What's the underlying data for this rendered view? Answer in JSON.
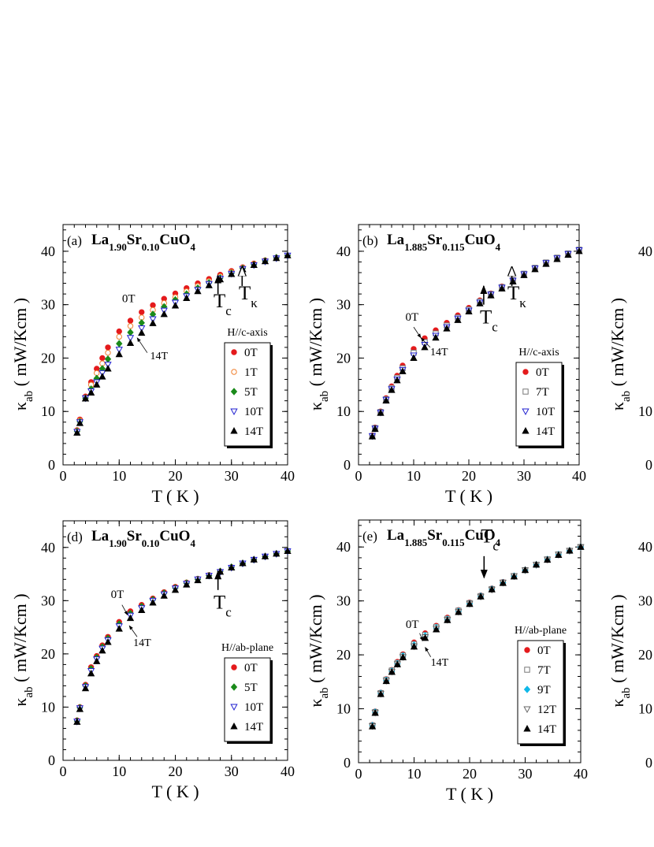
{
  "chart_data": [
    {
      "type": "scatter",
      "panel_label": "(a)",
      "title": "La1.90Sr0.10CuO4",
      "x_label": "T ( K )",
      "y_label": "κab ( mW/Kcm )",
      "xlim": [
        0,
        40
      ],
      "ylim": [
        0,
        45
      ],
      "xticks": [
        0,
        10,
        20,
        30,
        40
      ],
      "yticks": [
        0,
        10,
        20,
        30,
        40
      ],
      "legend_title": "H//c-axis",
      "legend": "lower right",
      "annotations": [
        "0T",
        "14T",
        "Tc",
        "Tκ"
      ],
      "x": [
        2.5,
        3,
        4,
        5,
        6,
        7,
        8,
        10,
        12,
        14,
        16,
        18,
        20,
        22,
        24,
        26,
        28,
        30,
        32,
        34,
        36,
        38,
        40
      ],
      "series": [
        {
          "name": "0T",
          "color": "#e41a1c",
          "marker": "circle",
          "values": [
            6.5,
            8.5,
            12.8,
            15.5,
            18,
            20,
            22,
            25,
            27,
            28.6,
            29.9,
            31.1,
            32.1,
            33.1,
            34,
            34.8,
            35.6,
            36.3,
            37,
            37.7,
            38.3,
            38.8,
            39.2
          ]
        },
        {
          "name": "1T",
          "color": "#f08030",
          "marker": "open-circle",
          "values": [
            6.4,
            8.3,
            12.6,
            15,
            17.2,
            19,
            21,
            24,
            26,
            27.6,
            29,
            30.3,
            31.4,
            32.5,
            33.5,
            34.4,
            35.3,
            36.1,
            36.9,
            37.6,
            38.3,
            38.8,
            39.2
          ]
        },
        {
          "name": "5T",
          "color": "#1a8a1a",
          "marker": "diamond",
          "values": [
            6.3,
            8.1,
            12.5,
            14.2,
            16.2,
            18,
            19.8,
            22.7,
            24.8,
            26.6,
            28.2,
            29.6,
            30.9,
            32,
            33.1,
            34.1,
            35,
            35.9,
            36.8,
            37.5,
            38.2,
            38.8,
            39.2
          ]
        },
        {
          "name": "10T",
          "color": "#2020d0",
          "marker": "open-triangle-down",
          "values": [
            6.2,
            8,
            12.5,
            13.8,
            15.5,
            17.2,
            18.8,
            21.6,
            23.8,
            25.6,
            27.3,
            28.9,
            30.4,
            31.6,
            32.8,
            33.9,
            34.9,
            35.8,
            36.7,
            37.4,
            38.1,
            38.7,
            39.2
          ]
        },
        {
          "name": "14T",
          "color": "#000000",
          "marker": "triangle-up",
          "values": [
            6,
            7.8,
            12.4,
            13.5,
            15,
            16.5,
            18,
            20.7,
            22.8,
            24.7,
            26.5,
            28.2,
            29.8,
            31.2,
            32.5,
            33.6,
            34.7,
            35.7,
            36.6,
            37.4,
            38.1,
            38.7,
            39.2
          ]
        }
      ]
    },
    {
      "type": "scatter",
      "panel_label": "(b)",
      "title": "La1.885Sr0.115CuO4",
      "x_label": "T ( K )",
      "y_label": "κab ( mW/Kcm )",
      "xlim": [
        0,
        40
      ],
      "ylim": [
        0,
        45
      ],
      "xticks": [
        0,
        10,
        20,
        30,
        40
      ],
      "yticks": [
        0,
        10,
        20,
        30,
        40
      ],
      "legend_title": "H//c-axis",
      "legend": "lower right",
      "annotations": [
        "0T",
        "14T",
        "Tc",
        "Tκ"
      ],
      "x": [
        2.5,
        3,
        4,
        5,
        6,
        7,
        8,
        10,
        12,
        14,
        16,
        18,
        20,
        22,
        24,
        26,
        28,
        30,
        32,
        34,
        36,
        38,
        40
      ],
      "series": [
        {
          "name": "0T",
          "color": "#e41a1c",
          "marker": "circle",
          "values": [
            5.5,
            7,
            10,
            12.5,
            14.7,
            16.7,
            18.6,
            21.7,
            23.7,
            25.2,
            26.6,
            28,
            29.4,
            30.8,
            32.1,
            33.4,
            34.6,
            35.7,
            36.8,
            37.8,
            38.7,
            39.5,
            40.2
          ]
        },
        {
          "name": "7T",
          "color": "#777777",
          "marker": "open-square",
          "values": [
            5.4,
            6.9,
            9.9,
            12.3,
            14.4,
            16.3,
            18.1,
            21,
            23,
            24.6,
            26.1,
            27.6,
            29.1,
            30.6,
            32,
            33.3,
            34.6,
            35.8,
            36.9,
            37.9,
            38.8,
            39.6,
            40.3
          ]
        },
        {
          "name": "10T",
          "color": "#2020d0",
          "marker": "open-triangle-down",
          "values": [
            5.4,
            6.8,
            9.8,
            12.2,
            14.2,
            16,
            17.8,
            20.5,
            22.5,
            24.2,
            25.8,
            27.4,
            28.9,
            30.4,
            31.9,
            33.2,
            34.5,
            35.7,
            36.8,
            37.8,
            38.7,
            39.5,
            40.2
          ]
        },
        {
          "name": "14T",
          "color": "#000000",
          "marker": "triangle-up",
          "values": [
            5.3,
            6.7,
            9.7,
            12,
            14,
            15.8,
            17.5,
            20,
            22,
            23.8,
            25.5,
            27.1,
            28.7,
            30.2,
            31.7,
            33,
            34.3,
            35.5,
            36.6,
            37.6,
            38.5,
            39.3,
            40
          ]
        }
      ]
    },
    {
      "type": "scatter",
      "panel_label": "(d)",
      "title": "La1.90Sr0.10CuO4",
      "x_label": "T ( K )",
      "y_label": "κab ( mW/Kcm )",
      "xlim": [
        0,
        40
      ],
      "ylim": [
        0,
        45
      ],
      "xticks": [
        0,
        10,
        20,
        30,
        40
      ],
      "yticks": [
        0,
        10,
        20,
        30,
        40
      ],
      "legend_title": "H//ab-plane",
      "legend": "lower right",
      "annotations": [
        "0T",
        "14T",
        "Tc"
      ],
      "x": [
        2.5,
        3,
        4,
        5,
        6,
        7,
        8,
        10,
        12,
        14,
        16,
        18,
        20,
        22,
        24,
        26,
        28,
        30,
        32,
        34,
        36,
        38,
        40
      ],
      "series": [
        {
          "name": "0T",
          "color": "#e41a1c",
          "marker": "circle",
          "values": [
            7.5,
            10,
            14.2,
            17.5,
            19.6,
            21.6,
            23.2,
            26,
            28,
            29.2,
            30.4,
            31.6,
            32.6,
            33.4,
            34.1,
            34.8,
            35.5,
            36.3,
            37,
            37.7,
            38.3,
            38.8,
            39.3
          ]
        },
        {
          "name": "5T",
          "color": "#1a8a1a",
          "marker": "diamond",
          "values": [
            7.4,
            9.9,
            14,
            17.2,
            19.3,
            21.3,
            22.9,
            25.6,
            27.6,
            28.9,
            30.2,
            31.4,
            32.4,
            33.3,
            34,
            34.7,
            35.5,
            36.3,
            37,
            37.7,
            38.3,
            38.8,
            39.3
          ]
        },
        {
          "name": "10T",
          "color": "#2020d0",
          "marker": "open-triangle-down",
          "values": [
            7.3,
            9.8,
            13.8,
            16.8,
            19,
            21,
            22.6,
            25.2,
            27.2,
            28.6,
            30,
            31.2,
            32.3,
            33.2,
            34,
            34.7,
            35.4,
            36.2,
            37,
            37.7,
            38.3,
            38.8,
            39.3
          ]
        },
        {
          "name": "14T",
          "color": "#000000",
          "marker": "triangle-up",
          "values": [
            7.2,
            9.6,
            13.5,
            16.3,
            18.6,
            20.6,
            22.2,
            24.7,
            26.7,
            28.2,
            29.6,
            30.9,
            32,
            33,
            33.8,
            34.6,
            35.4,
            36.2,
            37,
            37.7,
            38.3,
            38.8,
            39.3
          ]
        }
      ]
    },
    {
      "type": "scatter",
      "panel_label": "(e)",
      "title": "La1.885Sr0.115CuO4",
      "x_label": "T ( K )",
      "y_label": "κab ( mW/Kcm )",
      "xlim": [
        0,
        40
      ],
      "ylim": [
        0,
        45
      ],
      "xticks": [
        0,
        10,
        20,
        30,
        40
      ],
      "yticks": [
        0,
        10,
        20,
        30,
        40
      ],
      "legend_title": "H//ab-plane",
      "legend": "lower right",
      "annotations": [
        "0T",
        "14T",
        "Tc"
      ],
      "x": [
        2.5,
        3,
        4,
        5,
        6,
        7,
        8,
        10,
        12,
        14,
        16,
        18,
        20,
        22,
        24,
        26,
        28,
        30,
        32,
        34,
        36,
        38,
        40
      ],
      "series": [
        {
          "name": "0T",
          "color": "#e41a1c",
          "marker": "circle",
          "values": [
            7,
            9.5,
            13,
            15.5,
            17.2,
            18.7,
            20.1,
            22.3,
            24,
            25.4,
            26.9,
            28.3,
            29.7,
            31,
            32.3,
            33.5,
            34.6,
            35.7,
            36.7,
            37.6,
            38.5,
            39.3,
            40
          ]
        },
        {
          "name": "7T",
          "color": "#777777",
          "marker": "open-square",
          "values": [
            6.9,
            9.4,
            12.9,
            15.4,
            17.1,
            18.5,
            19.9,
            22,
            23.7,
            25.2,
            26.7,
            28.2,
            29.6,
            30.9,
            32.2,
            33.4,
            34.6,
            35.7,
            36.7,
            37.7,
            38.6,
            39.3,
            40
          ]
        },
        {
          "name": "9T",
          "color": "#10b8e8",
          "marker": "diamond",
          "values": [
            6.9,
            9.4,
            12.9,
            15.3,
            17,
            18.4,
            19.8,
            21.8,
            23.5,
            25,
            26.6,
            28.1,
            29.5,
            30.9,
            32.2,
            33.4,
            34.6,
            35.7,
            36.7,
            37.7,
            38.6,
            39.3,
            40
          ]
        },
        {
          "name": "12T",
          "color": "#666666",
          "marker": "open-triangle-down",
          "values": [
            6.8,
            9.3,
            12.8,
            15.2,
            16.9,
            18.3,
            19.6,
            21.6,
            23.3,
            24.9,
            26.5,
            28,
            29.5,
            30.8,
            32.1,
            33.4,
            34.6,
            35.7,
            36.7,
            37.7,
            38.6,
            39.3,
            40
          ]
        },
        {
          "name": "14T",
          "color": "#000000",
          "marker": "triangle-up",
          "values": [
            6.7,
            9.2,
            12.7,
            15.1,
            16.8,
            18.2,
            19.5,
            21.5,
            23.1,
            24.7,
            26.4,
            27.9,
            29.4,
            30.8,
            32.1,
            33.3,
            34.5,
            35.7,
            36.7,
            37.6,
            38.5,
            39.3,
            40
          ]
        }
      ]
    },
    {
      "type": "scatter",
      "y_label": "κab ( mW/Kcm )",
      "ylim": [
        0,
        45
      ],
      "yticks": [
        0,
        10,
        40
      ]
    },
    {
      "type": "scatter",
      "y_label": "κab ( mW/Kcm )",
      "ylim": [
        0,
        45
      ],
      "yticks": [
        0,
        10,
        20,
        30,
        40
      ]
    }
  ]
}
